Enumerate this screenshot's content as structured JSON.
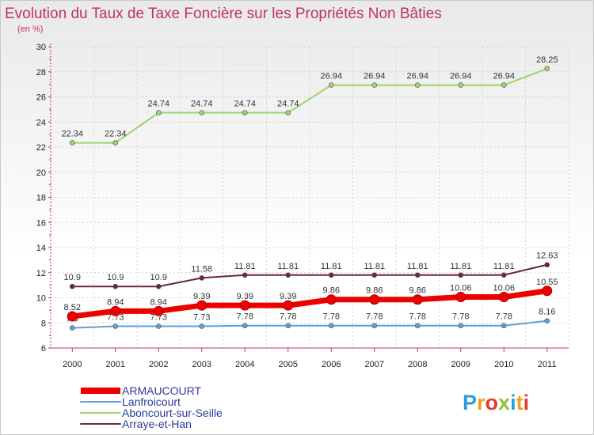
{
  "chart_data": {
    "type": "line",
    "title": "Evolution du Taux de Taxe Foncière sur les Propriétés Non Bâties",
    "subtitle": "(en %)",
    "xlabel": "",
    "ylabel": "",
    "ylim": [
      6,
      30
    ],
    "yticks": [
      "6",
      "8",
      "10",
      "12",
      "14",
      "16",
      "18",
      "20",
      "22",
      "24",
      "26",
      "28",
      "30"
    ],
    "categories": [
      "2000",
      "2001",
      "2002",
      "2003",
      "2004",
      "2005",
      "2006",
      "2007",
      "2008",
      "2009",
      "2010",
      "2011"
    ],
    "series": [
      {
        "name": "ARMAUCOURT",
        "color": "#ee0000",
        "values": [
          8.52,
          8.94,
          8.94,
          9.39,
          9.39,
          9.39,
          9.86,
          9.86,
          9.86,
          10.06,
          10.06,
          10.55
        ],
        "labels": [
          "8.52",
          "8.94",
          "8.94",
          "9.39",
          "9.39",
          "9.39",
          "9.86",
          "9.86",
          "9.86",
          "10.06",
          "10.06",
          "10.55"
        ]
      },
      {
        "name": "Lanfroicourt",
        "color": "#5e9fd6",
        "values": [
          7.6,
          7.73,
          7.73,
          7.73,
          7.78,
          7.78,
          7.78,
          7.78,
          7.78,
          7.78,
          7.78,
          8.16
        ],
        "labels": [
          "7.6",
          "7.73",
          "7.73",
          "7.73",
          "7.78",
          "7.78",
          "7.78",
          "7.78",
          "7.78",
          "7.78",
          "7.78",
          "8.16"
        ]
      },
      {
        "name": "Aboncourt-sur-Seille",
        "color": "#9ed46a",
        "values": [
          22.34,
          22.34,
          24.74,
          24.74,
          24.74,
          24.74,
          26.94,
          26.94,
          26.94,
          26.94,
          26.94,
          28.25
        ],
        "labels": [
          "22.34",
          "22.34",
          "24.74",
          "24.74",
          "24.74",
          "24.74",
          "26.94",
          "26.94",
          "26.94",
          "26.94",
          "26.94",
          "28.25"
        ]
      },
      {
        "name": "Arraye-et-Han",
        "color": "#6b2a33",
        "values": [
          10.9,
          10.9,
          10.9,
          11.58,
          11.81,
          11.81,
          11.81,
          11.81,
          11.81,
          11.81,
          11.81,
          12.63
        ],
        "labels": [
          "10.9",
          "10.9",
          "10.9",
          "11.58",
          "11.81",
          "11.81",
          "11.81",
          "11.81",
          "11.81",
          "11.81",
          "11.81",
          "12.63"
        ]
      }
    ],
    "legend_position": "bottom-left"
  },
  "brand": {
    "letters": [
      "P",
      "r",
      "o",
      "x",
      "i",
      "t",
      "i"
    ],
    "colors": [
      "#2d9be0",
      "#f0a020",
      "#e23c2a",
      "#8cc43c",
      "#2d9be0",
      "#f0a020",
      "#e23c2a"
    ]
  }
}
